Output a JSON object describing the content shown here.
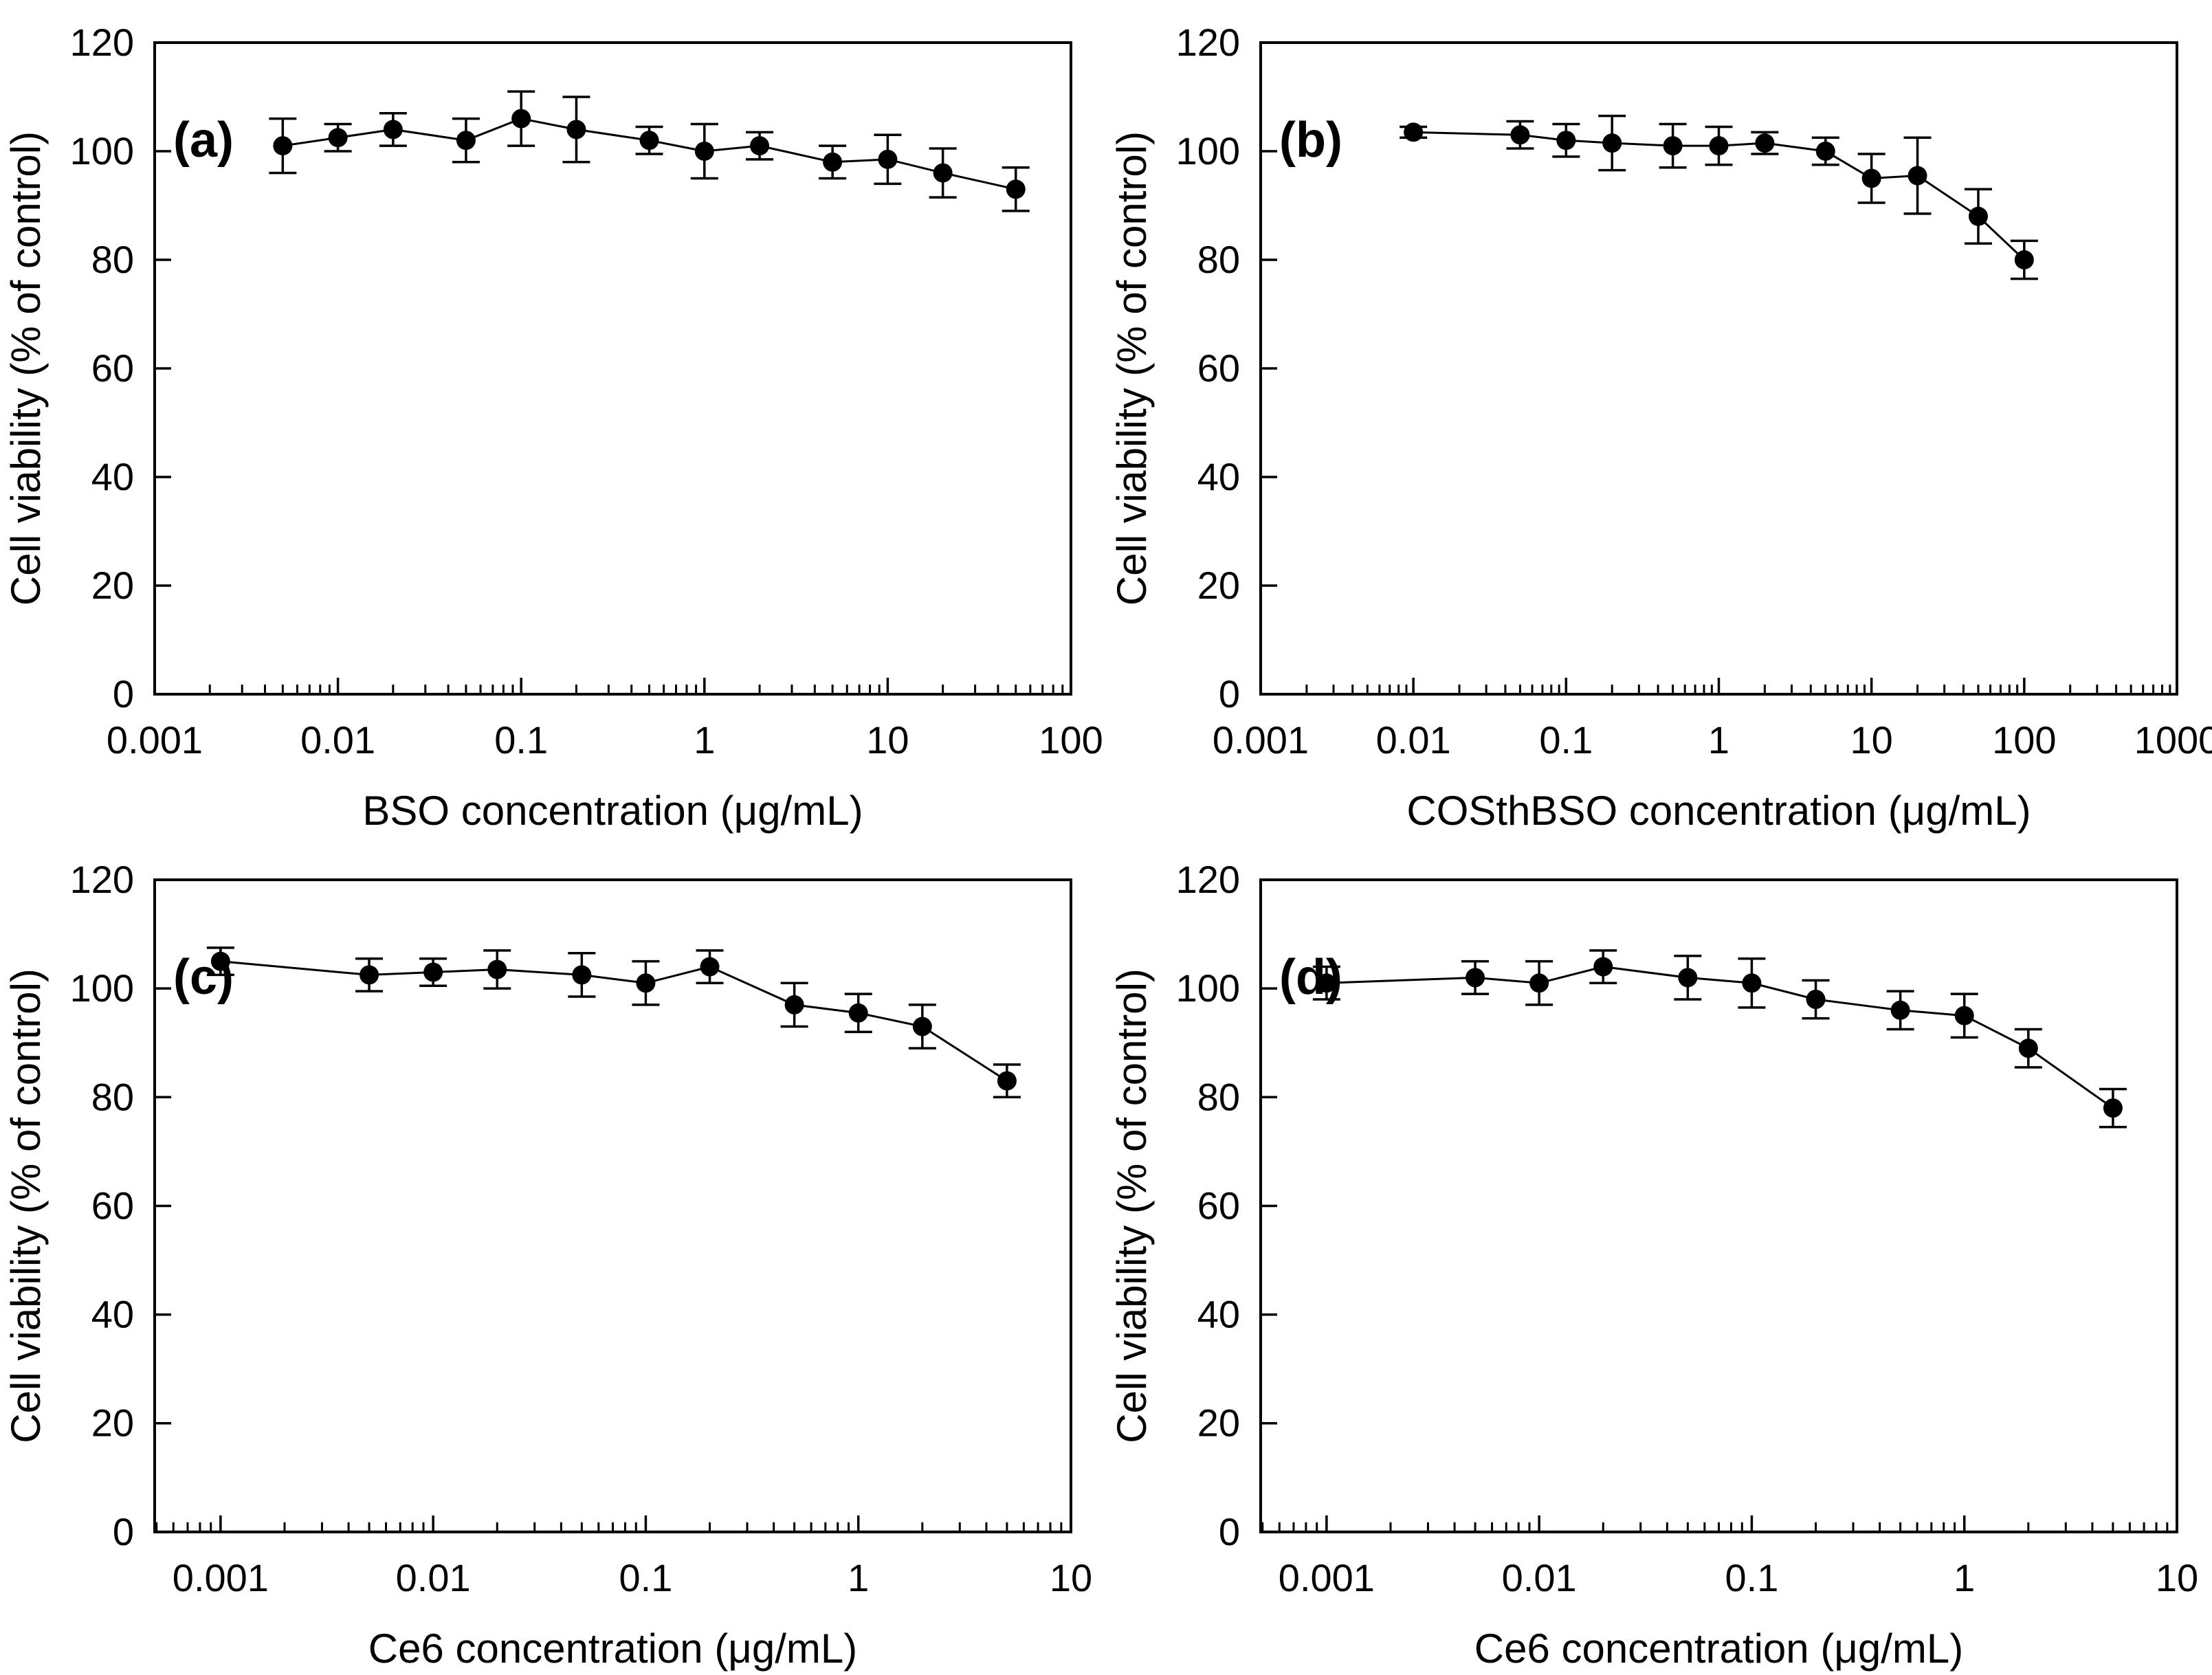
{
  "figure": {
    "background": "#ffffff",
    "ink": "#000000",
    "marker_color": "#000000",
    "ylabel_shared": "Cell viability (% of control)"
  },
  "chart_data": [
    {
      "panel_letter": "(a)",
      "type": "line",
      "title": "",
      "xlabel": "BSO concentration (μg/mL)",
      "ylabel": "Cell viability (% of control)",
      "x_scale": "log",
      "log_range": [
        -3,
        2
      ],
      "ylim": [
        0,
        120
      ],
      "grid": false,
      "legend": "none",
      "y_ticks": [
        0,
        20,
        40,
        60,
        80,
        100,
        120
      ],
      "y_tick_labels": [
        "0",
        "20",
        "40",
        "60",
        "80",
        "100",
        "120"
      ],
      "x_ticks": [
        0.001,
        0.01,
        0.1,
        1,
        10,
        100
      ],
      "x_tick_labels": [
        "0.001",
        "0.01",
        "0.1",
        "1",
        "10",
        "100"
      ],
      "series": [
        {
          "name": "BSO",
          "marker": "filled-circle",
          "color": "#000000",
          "x": [
            0.005,
            0.01,
            0.02,
            0.05,
            0.1,
            0.2,
            0.5,
            1,
            2,
            5,
            10,
            20,
            50
          ],
          "y": [
            101,
            102.5,
            104,
            102,
            106,
            104,
            102,
            100,
            101,
            98,
            98.5,
            96,
            93
          ],
          "err": [
            5,
            2.5,
            3,
            4,
            5,
            6,
            2.5,
            5,
            2.5,
            3,
            4.5,
            4.5,
            4
          ]
        }
      ]
    },
    {
      "panel_letter": "(b)",
      "type": "line",
      "title": "",
      "xlabel": "COSthBSO concentration (μg/mL)",
      "ylabel": "Cell viability (% of control)",
      "x_scale": "log",
      "log_range": [
        -3,
        3
      ],
      "ylim": [
        0,
        120
      ],
      "grid": false,
      "legend": "none",
      "y_ticks": [
        0,
        20,
        40,
        60,
        80,
        100,
        120
      ],
      "y_tick_labels": [
        "0",
        "20",
        "40",
        "60",
        "80",
        "100",
        "120"
      ],
      "x_ticks": [
        0.001,
        0.01,
        0.1,
        1,
        10,
        100,
        1000
      ],
      "x_tick_labels": [
        "0.001",
        "0.01",
        "0.1",
        "1",
        "10",
        "100",
        "1000"
      ],
      "series": [
        {
          "name": "COSthBSO",
          "marker": "filled-circle",
          "color": "#000000",
          "x": [
            0.01,
            0.05,
            0.1,
            0.2,
            0.5,
            1,
            2,
            5,
            10,
            20,
            50,
            100
          ],
          "y": [
            103.5,
            103,
            102,
            101.5,
            101,
            101,
            101.5,
            100,
            95,
            95.5,
            88,
            80
          ],
          "err": [
            1,
            2.5,
            3,
            5,
            4,
            3.5,
            2,
            2.5,
            4.5,
            7,
            5,
            3.5
          ]
        }
      ]
    },
    {
      "panel_letter": "(c)",
      "type": "line",
      "title": "",
      "xlabel": "Ce6 concentration (μg/mL)",
      "ylabel": "Cell viability (% of control)",
      "x_scale": "log",
      "log_range": [
        -3.31,
        1
      ],
      "ylim": [
        0,
        120
      ],
      "grid": false,
      "legend": "none",
      "y_ticks": [
        0,
        20,
        40,
        60,
        80,
        100,
        120
      ],
      "y_tick_labels": [
        "0",
        "20",
        "40",
        "60",
        "80",
        "100",
        "120"
      ],
      "x_ticks": [
        0.001,
        0.01,
        0.1,
        1,
        10
      ],
      "x_tick_labels": [
        "0.001",
        "0.01",
        "0.1",
        "1",
        "10"
      ],
      "series": [
        {
          "name": "Ce6",
          "marker": "filled-circle",
          "color": "#000000",
          "x": [
            0.001,
            0.005,
            0.01,
            0.02,
            0.05,
            0.1,
            0.2,
            0.5,
            1,
            2,
            5
          ],
          "y": [
            105,
            102.5,
            103,
            103.5,
            102.5,
            101,
            104,
            97,
            95.5,
            93,
            83
          ],
          "err": [
            2.5,
            3,
            2.5,
            3.5,
            4,
            4,
            3,
            4,
            3.5,
            4,
            3
          ]
        }
      ]
    },
    {
      "panel_letter": "(d)",
      "type": "line",
      "title": "",
      "xlabel": "Ce6 concentration (μg/mL)",
      "ylabel": "Cell viability (% of control)",
      "x_scale": "log",
      "log_range": [
        -3.31,
        1
      ],
      "ylim": [
        0,
        120
      ],
      "grid": false,
      "legend": "none",
      "y_ticks": [
        0,
        20,
        40,
        60,
        80,
        100,
        120
      ],
      "y_tick_labels": [
        "0",
        "20",
        "40",
        "60",
        "80",
        "100",
        "120"
      ],
      "x_ticks": [
        0.001,
        0.01,
        0.1,
        1,
        10
      ],
      "x_tick_labels": [
        "0.001",
        "0.01",
        "0.1",
        "1",
        "10"
      ],
      "series": [
        {
          "name": "Ce6",
          "marker": "filled-circle",
          "color": "#000000",
          "x": [
            0.001,
            0.005,
            0.01,
            0.02,
            0.05,
            0.1,
            0.2,
            0.5,
            1,
            2,
            5
          ],
          "y": [
            101,
            102,
            101,
            104,
            102,
            101,
            98,
            96,
            95,
            89,
            78
          ],
          "err": [
            3,
            3,
            4,
            3,
            4,
            4.5,
            3.5,
            3.5,
            4,
            3.5,
            3.5
          ]
        }
      ]
    }
  ]
}
